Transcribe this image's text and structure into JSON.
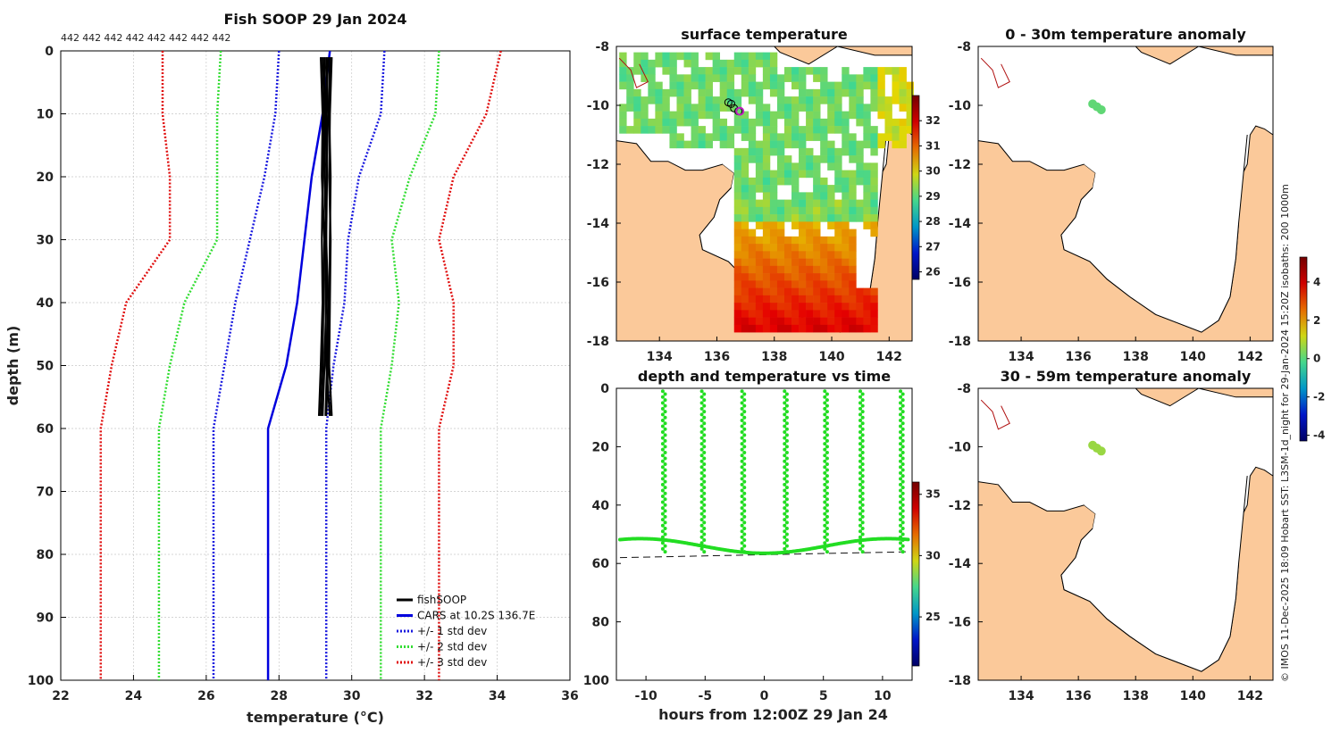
{
  "figure": {
    "credit": "© IMOS 11-Dec-2025 18:09 Hobart SST: L3SM-1d_night for 29-Jan-2024 15:20Z isobaths: 200  1000m"
  },
  "colors": {
    "land": "#fbc99a",
    "fish": "#000000",
    "cars": "#0000dd",
    "std1": "#1a1adf",
    "std2": "#33dd33",
    "std3": "#e01010",
    "grid": "#c8c8c8",
    "timeseries": "#22dd22"
  },
  "chart_data": [
    {
      "id": "profile",
      "type": "line",
      "title": "Fish SOOP 29 Jan 2024",
      "xlabel": "temperature (°C)",
      "ylabel": "depth (m)",
      "xlim": [
        22,
        36
      ],
      "ylim": [
        100,
        0
      ],
      "xticks": [
        22,
        24,
        26,
        28,
        30,
        32,
        34,
        36
      ],
      "yticks": [
        0,
        10,
        20,
        30,
        40,
        50,
        60,
        70,
        80,
        90,
        100
      ],
      "top_counts": [
        "442",
        "442",
        "442",
        "442",
        "442",
        "442",
        "442",
        "442"
      ],
      "grid": true,
      "depth": [
        0,
        10,
        20,
        30,
        40,
        50,
        60,
        100
      ],
      "series": [
        {
          "name": "CARS at 10.2S 136.7E",
          "color_key": "cars",
          "style": "solid",
          "values": [
            29.4,
            29.2,
            28.9,
            28.7,
            28.5,
            28.2,
            27.7,
            27.7
          ]
        },
        {
          "name": "+/- 1 std dev",
          "color_key": "std1",
          "style": "dotted",
          "values": [
            28.0,
            27.9,
            27.6,
            27.2,
            26.8,
            26.5,
            26.2,
            26.2
          ]
        },
        {
          "name": "+/- 1 std dev (upper)",
          "color_key": "std1",
          "style": "dotted",
          "legend": false,
          "values": [
            30.9,
            30.8,
            30.2,
            29.9,
            29.8,
            29.5,
            29.3,
            29.3
          ]
        },
        {
          "name": "+/- 2 std dev",
          "color_key": "std2",
          "style": "dotted",
          "values": [
            26.4,
            26.3,
            26.3,
            26.3,
            25.4,
            25.0,
            24.7,
            24.7
          ]
        },
        {
          "name": "+/- 2 std dev (upper)",
          "color_key": "std2",
          "style": "dotted",
          "legend": false,
          "values": [
            32.4,
            32.3,
            31.6,
            31.1,
            31.3,
            31.1,
            30.8,
            30.8
          ]
        },
        {
          "name": "+/- 3 std dev",
          "color_key": "std3",
          "style": "dotted",
          "values": [
            24.8,
            24.8,
            25.0,
            25.0,
            23.8,
            23.4,
            23.1,
            23.1
          ]
        },
        {
          "name": "+/- 3 std dev (upper)",
          "color_key": "std3",
          "style": "dotted",
          "legend": false,
          "values": [
            34.1,
            33.7,
            32.8,
            32.4,
            32.8,
            32.8,
            32.4,
            32.4
          ]
        }
      ],
      "fish_profiles": {
        "name": "fishSOOP",
        "depth": [
          1,
          10,
          20,
          30,
          40,
          50,
          58
        ],
        "casts": [
          [
            29.2,
            29.25,
            29.2,
            29.18,
            29.2,
            29.15,
            29.1
          ],
          [
            29.3,
            29.35,
            29.3,
            29.28,
            29.3,
            29.25,
            29.2
          ],
          [
            29.4,
            29.38,
            29.42,
            29.4,
            29.38,
            29.35,
            29.3
          ],
          [
            29.35,
            29.3,
            29.32,
            29.3,
            29.28,
            29.3,
            29.4
          ],
          [
            29.25,
            29.28,
            29.25,
            29.3,
            29.35,
            29.32,
            29.28
          ],
          [
            29.45,
            29.4,
            29.38,
            29.42,
            29.4,
            29.38,
            29.45
          ],
          [
            29.15,
            29.2,
            29.18,
            29.25,
            29.22,
            29.2,
            29.15
          ]
        ]
      },
      "legend": [
        "fishSOOP",
        "CARS at 10.2S 136.7E",
        "+/- 1 std dev",
        "+/- 2 std dev",
        "+/- 3 std dev"
      ],
      "legend_position": "bottom-right"
    },
    {
      "id": "sst_map",
      "type": "heatmap",
      "title": "surface temperature",
      "xlim": [
        132.5,
        142.8
      ],
      "ylim": [
        -18,
        -8
      ],
      "xticks": [
        134,
        136,
        138,
        140,
        142
      ],
      "yticks": [
        -8,
        -10,
        -12,
        -14,
        -16,
        -18
      ],
      "colorbar": {
        "min": 25.7,
        "max": 33,
        "ticks": [
          26,
          27,
          28,
          29,
          30,
          31,
          32
        ]
      },
      "track": {
        "lon": [
          136.4,
          136.5,
          136.6,
          136.75
        ],
        "lat": [
          -9.9,
          -9.95,
          -10.1,
          -10.2
        ]
      }
    },
    {
      "id": "depth_time",
      "type": "scatter",
      "title": "depth and temperature vs time",
      "xlabel": "hours from 12:00Z 29 Jan 24",
      "xlim": [
        -12.5,
        12.5
      ],
      "ylim": [
        100,
        0
      ],
      "xticks": [
        -10,
        -5,
        0,
        5,
        10
      ],
      "yticks": [
        0,
        20,
        40,
        60,
        80,
        100
      ],
      "casts_hours": [
        -8.5,
        -5.2,
        -1.8,
        1.8,
        5.2,
        8.2,
        11.6
      ],
      "cast_bottom_depth": 55,
      "bottom_depth": 58,
      "colorbar": {
        "min": 21,
        "max": 36,
        "ticks": [
          25,
          30,
          35
        ]
      }
    },
    {
      "id": "anom_shallow",
      "type": "heatmap",
      "title": "0 - 30m temperature anomaly",
      "xlim": [
        132.5,
        142.8
      ],
      "ylim": [
        -18,
        -8
      ],
      "xticks": [
        134,
        136,
        138,
        140,
        142
      ],
      "yticks": [
        -8,
        -10,
        -12,
        -14,
        -16,
        -18
      ],
      "anomaly": [
        {
          "lon": 136.5,
          "lat": -9.95,
          "value": 0.3
        },
        {
          "lon": 136.65,
          "lat": -10.05,
          "value": 0.3
        },
        {
          "lon": 136.8,
          "lat": -10.15,
          "value": 0.3
        }
      ]
    },
    {
      "id": "anom_deep",
      "type": "heatmap",
      "title": "30 - 59m temperature anomaly",
      "xlim": [
        132.5,
        142.8
      ],
      "ylim": [
        -18,
        -8
      ],
      "xticks": [
        134,
        136,
        138,
        140,
        142
      ],
      "yticks": [
        -8,
        -10,
        -12,
        -14,
        -16,
        -18
      ],
      "anomaly": [
        {
          "lon": 136.5,
          "lat": -9.95,
          "value": 0.9
        },
        {
          "lon": 136.65,
          "lat": -10.05,
          "value": 0.9
        },
        {
          "lon": 136.8,
          "lat": -10.15,
          "value": 0.9
        }
      ],
      "colorbar": {
        "min": -4.3,
        "max": 5.3,
        "ticks": [
          -4,
          -2,
          0,
          2,
          4
        ]
      }
    }
  ]
}
